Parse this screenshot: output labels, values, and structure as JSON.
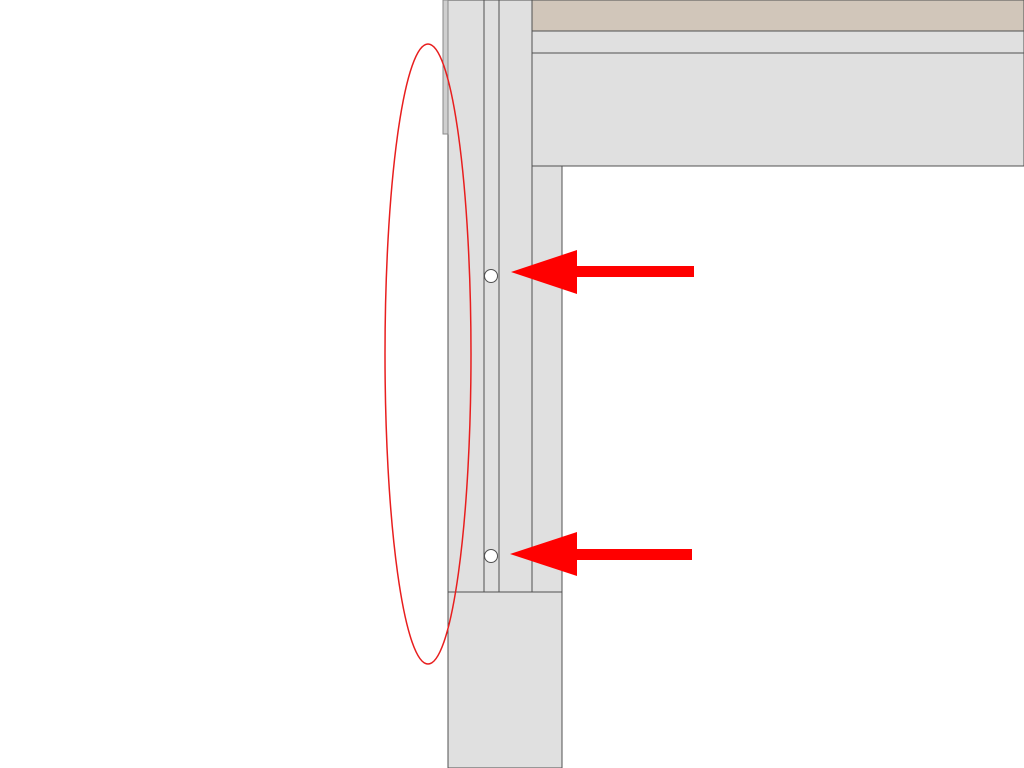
{
  "drawing": {
    "colors": {
      "background": "#ffffff",
      "wall_fill": "#e0e0e0",
      "wall_stroke": "#505050",
      "top_band": "#d1c6ba",
      "slab_fill": "#e0e0e0",
      "highlight": "#e81e1e",
      "arrow": "#ff0000",
      "anchor_fill": "#ffffff",
      "trim_edge": "#8a8a8a"
    },
    "annotations": {
      "highlight_ellipse": "highlight-ellipse",
      "arrows": [
        {
          "name": "arrow-upper",
          "points_to": "anchor-upper"
        },
        {
          "name": "arrow-lower",
          "points_to": "anchor-lower"
        }
      ]
    }
  }
}
